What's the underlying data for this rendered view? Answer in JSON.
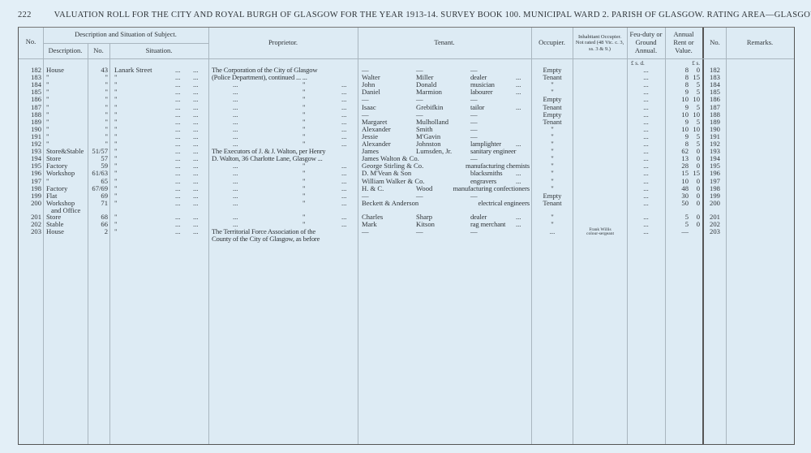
{
  "page_number": "222",
  "heading": "VALUATION ROLL FOR THE CITY AND ROYAL BURGH OF GLASGOW FOR THE YEAR 1913-14.   SURVEY BOOK 100.   MUNICIPAL WARD 2.   PARISH OF GLASGOW.   RATING AREA—GLASGOW.",
  "headers": {
    "no": "No.",
    "desc_group": "Description and Situation of Subject.",
    "description": "Description.",
    "number": "No.",
    "situation": "Situation.",
    "proprietor": "Proprietor.",
    "tenant": "Tenant.",
    "occupier": "Occupier.",
    "inhabitant": "Inhabitant Occupier. Not rated (48 Vic. c. 3, ss. 3 & 9.)",
    "feu": "Feu-duty or Ground Annual.",
    "rent": "Annual Rent or Value.",
    "no2": "No.",
    "remarks": "Remarks.",
    "feu_units": "£  s.  d.",
    "rent_units": "£  s."
  },
  "rows": [
    {
      "no": "182",
      "desc": "House",
      "num": "43",
      "sit": "Lanark Street",
      "prop": "The Corporation of the City of Glasgow",
      "t1": "—",
      "t2": "—",
      "t3": "—",
      "td": "",
      "occ": "Empty",
      "inh": "",
      "feu": "...",
      "l": "8",
      "s": "0"
    },
    {
      "no": "183",
      "desc": "\"",
      "num": "\"",
      "sit": "\"",
      "prop": "(Police Department), continued   ...   ...",
      "t1": "Walter",
      "t2": "Miller",
      "t3": "dealer",
      "td": "...",
      "occ": "Tenant",
      "inh": "",
      "feu": "...",
      "l": "8",
      "s": "15"
    },
    {
      "no": "184",
      "desc": "\"",
      "num": "\"",
      "sit": "\"",
      "prop": "...",
      "t1": "John",
      "t2": "Donald",
      "t3": "musician",
      "td": "...",
      "occ": "\"",
      "inh": "",
      "feu": "...",
      "l": "8",
      "s": "5"
    },
    {
      "no": "185",
      "desc": "\"",
      "num": "\"",
      "sit": "\"",
      "prop": "...",
      "t1": "Daniel",
      "t2": "Marmion",
      "t3": "labourer",
      "td": "...",
      "occ": "\"",
      "inh": "",
      "feu": "...",
      "l": "9",
      "s": "5"
    },
    {
      "no": "186",
      "desc": "\"",
      "num": "\"",
      "sit": "\"",
      "prop": "...",
      "t1": "—",
      "t2": "—",
      "t3": "—",
      "td": "",
      "occ": "Empty",
      "inh": "",
      "feu": "...",
      "l": "10",
      "s": "10"
    },
    {
      "no": "187",
      "desc": "\"",
      "num": "\"",
      "sit": "\"",
      "prop": "...",
      "t1": "Isaac",
      "t2": "Grebifkin",
      "t3": "tailor",
      "td": "...",
      "occ": "Tenant",
      "inh": "",
      "feu": "...",
      "l": "9",
      "s": "5"
    },
    {
      "no": "188",
      "desc": "\"",
      "num": "\"",
      "sit": "\"",
      "prop": "...",
      "t1": "—",
      "t2": "—",
      "t3": "—",
      "td": "",
      "occ": "Empty",
      "inh": "",
      "feu": "...",
      "l": "10",
      "s": "10"
    },
    {
      "no": "189",
      "desc": "\"",
      "num": "\"",
      "sit": "\"",
      "prop": "...",
      "t1": "Margaret",
      "t2": "Mulholland",
      "t3": "—",
      "td": "",
      "occ": "Tenant",
      "inh": "",
      "feu": "...",
      "l": "9",
      "s": "5"
    },
    {
      "no": "190",
      "desc": "\"",
      "num": "\"",
      "sit": "\"",
      "prop": "...",
      "t1": "Alexander",
      "t2": "Smith",
      "t3": "—",
      "td": "",
      "occ": "\"",
      "inh": "",
      "feu": "...",
      "l": "10",
      "s": "10"
    },
    {
      "no": "191",
      "desc": "\"",
      "num": "\"",
      "sit": "\"",
      "prop": "...",
      "t1": "Jessie",
      "t2": "M'Gavin",
      "t3": "—",
      "td": "",
      "occ": "\"",
      "inh": "",
      "feu": "...",
      "l": "9",
      "s": "5"
    },
    {
      "no": "192",
      "desc": "\"",
      "num": "\"",
      "sit": "\"",
      "prop": "...",
      "t1": "Alexander",
      "t2": "Johnston",
      "t3": "lamplighter",
      "td": "...",
      "occ": "\"",
      "inh": "",
      "feu": "...",
      "l": "8",
      "s": "5"
    },
    {
      "no": "193",
      "desc": "Store&Stable",
      "num": "51/57",
      "sit": "\"",
      "prop": "The Executors of J. & J. Walton, per Henry",
      "t1": "James",
      "t2": "Lumsden, Jr.",
      "t3": "sanitary engineer",
      "td": "",
      "occ": "\"",
      "inh": "",
      "feu": "...",
      "l": "62",
      "s": "0"
    },
    {
      "no": "194",
      "desc": "Store",
      "num": "57",
      "sit": "\"",
      "prop": "D. Walton, 36 Charlotte Lane, Glasgow   ...",
      "t1": "James Walton & Co.",
      "t2": "",
      "t3": "—",
      "td": "",
      "occ": "\"",
      "inh": "",
      "feu": "...",
      "l": "13",
      "s": "0"
    },
    {
      "no": "195",
      "desc": "Factory",
      "num": "59",
      "sit": "\"",
      "prop": "...",
      "t1": "George Stirling & Co.",
      "t2": "",
      "t3": "manufacturing chemists",
      "td": "",
      "occ": "\"",
      "inh": "",
      "feu": "...",
      "l": "28",
      "s": "0"
    },
    {
      "no": "196",
      "desc": "Workshop",
      "num": "61/63",
      "sit": "\"",
      "prop": "...",
      "t1": "D. M'Vean & Son",
      "t2": "",
      "t3": "blacksmiths",
      "td": "...",
      "occ": "\"",
      "inh": "",
      "feu": "...",
      "l": "15",
      "s": "15"
    },
    {
      "no": "197",
      "desc": "\"",
      "num": "65",
      "sit": "\"",
      "prop": "...",
      "t1": "William Walker & Co.",
      "t2": "",
      "t3": "engravers",
      "td": "...",
      "occ": "\"",
      "inh": "",
      "feu": "...",
      "l": "10",
      "s": "0"
    },
    {
      "no": "198",
      "desc": "Factory",
      "num": "67/69",
      "sit": "\"",
      "prop": "...",
      "t1": "H. & C.",
      "t2": "Wood",
      "t3": "manufacturing confectioners",
      "td": "",
      "occ": "\"",
      "inh": "",
      "feu": "...",
      "l": "48",
      "s": "0"
    },
    {
      "no": "199",
      "desc": "Flat",
      "num": "69",
      "sit": "\"",
      "prop": "...",
      "t1": "—",
      "t2": "—",
      "t3": "—",
      "td": "",
      "occ": "Empty",
      "inh": "",
      "feu": "...",
      "l": "30",
      "s": "0"
    },
    {
      "no": "200",
      "desc": "Workshop",
      "desc2": "and Office",
      "num": "71",
      "sit": "\"",
      "prop": "...",
      "t1": "Beckett & Anderson",
      "t2": "",
      "t3": "electrical engineers",
      "td": "",
      "occ": "Tenant",
      "inh": "",
      "feu": "...",
      "l": "50",
      "s": "0"
    },
    {
      "no": "201",
      "desc": "Store",
      "num": "68",
      "sit": "\"",
      "prop": "...",
      "t1": "Charles",
      "t2": "Sharp",
      "t3": "dealer",
      "td": "...",
      "occ": "\"",
      "inh": "",
      "feu": "...",
      "l": "5",
      "s": "0"
    },
    {
      "no": "202",
      "desc": "Stable",
      "num": "66",
      "sit": "\"",
      "prop": "...",
      "t1": "Mark",
      "t2": "Kitson",
      "t3": "rag merchant",
      "td": "...",
      "occ": "\"",
      "inh": "",
      "feu": "...",
      "l": "5",
      "s": "0"
    },
    {
      "no": "203",
      "desc": "House",
      "num": "2",
      "sit": "\"",
      "prop": "The Territorial Force Association of the",
      "prop2": "County of the City of Glasgow, as before",
      "t1": "—",
      "t2": "—",
      "t3": "—",
      "td": "",
      "occ": "...",
      "inh": "Frank Willis",
      "inh2": "colour-sergeant",
      "feu": "...",
      "l": "—",
      "s": ""
    }
  ]
}
